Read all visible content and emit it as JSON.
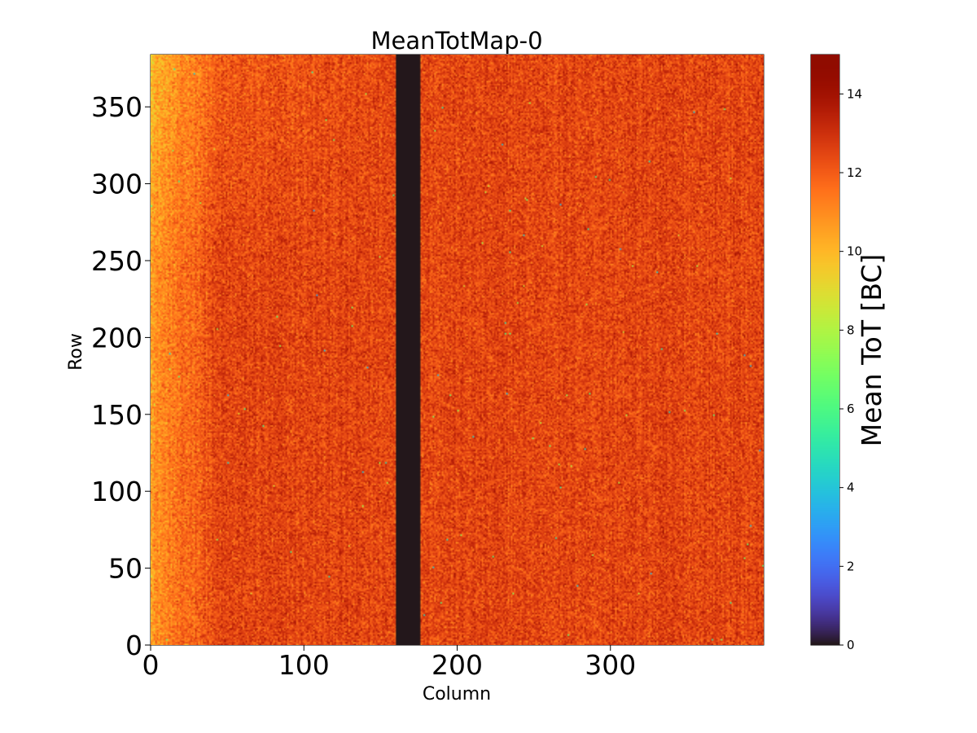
{
  "chart_data": {
    "type": "heatmap",
    "title": "MeanTotMap-0",
    "xlabel": "Column",
    "ylabel": "Row",
    "xlim": [
      0,
      400
    ],
    "ylim": [
      0,
      384
    ],
    "x_ticks": [
      0,
      100,
      200,
      300
    ],
    "x_tick_labels": [
      "0",
      "100",
      "200",
      "300"
    ],
    "y_ticks": [
      0,
      50,
      100,
      150,
      200,
      250,
      300,
      350
    ],
    "y_tick_labels": [
      "0",
      "50",
      "100",
      "150",
      "200",
      "250",
      "300",
      "350"
    ],
    "colorbar": {
      "label": "Mean ToT [BC]",
      "colormap": "turbo",
      "range": [
        0,
        15
      ],
      "ticks": [
        0,
        2,
        4,
        6,
        8,
        10,
        12,
        14
      ],
      "tick_labels": [
        "0",
        "2",
        "4",
        "6",
        "8",
        "10",
        "12",
        "14"
      ]
    },
    "value_range": [
      0,
      15
    ],
    "typical_value": 12.5,
    "left_edge_value": 10.8,
    "dead_columns": {
      "from": 160,
      "to": 176,
      "value": 0
    },
    "description_values": {
      "nominal_mean_tot": 12.5,
      "dead_region_mean_tot": 0
    }
  },
  "colors": {
    "background": "#ffffff",
    "axis": "#000000",
    "dead_region": "#30123b"
  }
}
